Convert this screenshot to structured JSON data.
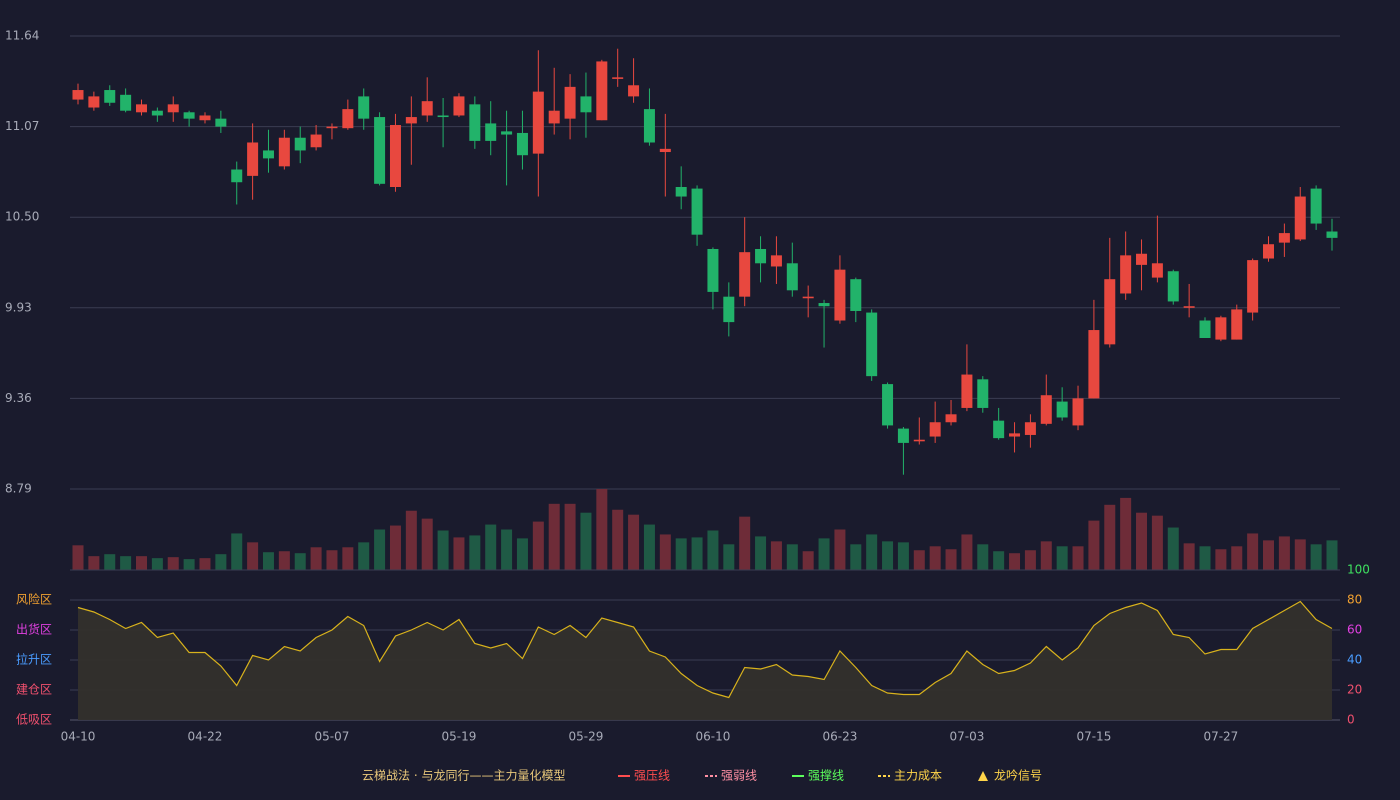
{
  "chart_data": {
    "type": "candlestick",
    "categories": [
      "04-10",
      null,
      null,
      null,
      null,
      null,
      null,
      null,
      "04-22",
      null,
      null,
      null,
      null,
      null,
      null,
      null,
      "05-07",
      null,
      null,
      null,
      null,
      null,
      null,
      null,
      "05-19",
      null,
      null,
      null,
      null,
      null,
      null,
      null,
      "05-29",
      null,
      null,
      null,
      null,
      null,
      null,
      null,
      "06-10",
      null,
      null,
      null,
      null,
      null,
      null,
      null,
      "06-23",
      null,
      null,
      null,
      null,
      null,
      null,
      null,
      "07-03",
      null,
      null,
      null,
      null,
      null,
      null,
      null,
      "07-15",
      null,
      null,
      null,
      null,
      null,
      null,
      null,
      "07-27",
      null,
      null,
      null,
      null,
      null,
      null,
      null
    ],
    "open": [
      11.24,
      11.19,
      11.3,
      11.27,
      11.16,
      11.17,
      11.16,
      11.16,
      11.11,
      11.12,
      10.8,
      10.76,
      10.92,
      10.82,
      11.0,
      10.94,
      11.06,
      11.06,
      11.26,
      11.13,
      10.69,
      11.09,
      11.14,
      11.14,
      11.14,
      11.21,
      11.09,
      11.04,
      11.03,
      10.9,
      11.09,
      11.12,
      11.26,
      11.11,
      11.37,
      11.26,
      11.18,
      10.91,
      10.69,
      10.68,
      10.3,
      10.0,
      10.0,
      10.3,
      10.19,
      10.21,
      9.99,
      9.96,
      9.85,
      10.11,
      9.9,
      9.45,
      9.17,
      9.09,
      9.12,
      9.21,
      9.3,
      9.48,
      9.22,
      9.12,
      9.13,
      9.2,
      9.34,
      9.19,
      9.36,
      9.7,
      10.02,
      10.2,
      10.12,
      10.16,
      9.93,
      9.85,
      9.73,
      9.73,
      9.9,
      10.24,
      10.34,
      10.36,
      10.68,
      10.41
    ],
    "close": [
      11.3,
      11.26,
      11.22,
      11.17,
      11.21,
      11.14,
      11.21,
      11.12,
      11.14,
      11.07,
      10.72,
      10.97,
      10.87,
      11.0,
      10.92,
      11.02,
      11.07,
      11.18,
      11.12,
      10.71,
      11.08,
      11.13,
      11.23,
      11.13,
      11.26,
      10.98,
      10.98,
      11.02,
      10.89,
      11.29,
      11.17,
      11.32,
      11.16,
      11.48,
      11.38,
      11.33,
      10.97,
      10.93,
      10.63,
      10.39,
      10.03,
      9.84,
      10.28,
      10.21,
      10.26,
      10.04,
      10.0,
      9.94,
      10.17,
      9.91,
      9.5,
      9.19,
      9.08,
      9.1,
      9.21,
      9.26,
      9.51,
      9.3,
      9.11,
      9.14,
      9.21,
      9.38,
      9.24,
      9.36,
      9.79,
      10.11,
      10.26,
      10.27,
      10.21,
      9.97,
      9.94,
      9.74,
      9.87,
      9.92,
      10.23,
      10.33,
      10.4,
      10.63,
      10.46,
      10.37
    ],
    "low": [
      11.21,
      11.17,
      11.2,
      11.16,
      11.14,
      11.1,
      11.1,
      11.07,
      11.09,
      11.03,
      10.58,
      10.61,
      10.78,
      10.8,
      10.84,
      10.92,
      10.99,
      11.05,
      11.05,
      10.7,
      10.66,
      10.83,
      11.1,
      10.94,
      11.13,
      10.93,
      10.89,
      10.7,
      10.8,
      10.63,
      11.02,
      10.99,
      11.0,
      11.11,
      11.32,
      11.22,
      10.95,
      10.63,
      10.55,
      10.32,
      9.92,
      9.75,
      9.94,
      10.09,
      10.08,
      10.0,
      9.87,
      9.68,
      9.83,
      9.84,
      9.47,
      9.17,
      8.88,
      9.07,
      9.08,
      9.19,
      9.28,
      9.27,
      9.1,
      9.02,
      9.05,
      9.19,
      9.22,
      9.16,
      9.36,
      9.68,
      9.98,
      10.04,
      10.09,
      9.95,
      9.87,
      9.74,
      9.72,
      9.73,
      9.85,
      10.22,
      10.25,
      10.35,
      10.42,
      10.29
    ],
    "high": [
      11.34,
      11.29,
      11.33,
      11.31,
      11.24,
      11.19,
      11.26,
      11.17,
      11.16,
      11.17,
      10.85,
      11.09,
      11.05,
      11.05,
      11.07,
      11.08,
      11.09,
      11.24,
      11.31,
      11.16,
      11.15,
      11.26,
      11.38,
      11.25,
      11.28,
      11.26,
      11.23,
      11.17,
      11.17,
      11.55,
      11.44,
      11.4,
      11.41,
      11.49,
      11.56,
      11.5,
      11.31,
      11.15,
      10.82,
      10.7,
      10.31,
      10.09,
      10.5,
      10.38,
      10.38,
      10.34,
      10.07,
      9.98,
      10.26,
      10.12,
      9.92,
      9.46,
      9.18,
      9.24,
      9.34,
      9.35,
      9.7,
      9.5,
      9.3,
      9.21,
      9.26,
      9.51,
      9.43,
      9.44,
      9.98,
      10.37,
      10.41,
      10.36,
      10.51,
      10.17,
      10.08,
      9.87,
      9.88,
      9.95,
      10.24,
      10.38,
      10.46,
      10.69,
      10.7,
      10.49
    ],
    "volume": [
      25,
      14,
      16,
      14,
      14,
      12,
      13,
      11,
      12,
      16,
      37,
      28,
      18,
      19,
      17,
      23,
      20,
      23,
      28,
      41,
      45,
      60,
      52,
      40,
      33,
      35,
      46,
      41,
      32,
      49,
      67,
      67,
      58,
      82,
      61,
      56,
      46,
      36,
      32,
      33,
      40,
      26,
      54,
      34,
      29,
      26,
      19,
      32,
      41,
      26,
      36,
      29,
      28,
      20,
      24,
      21,
      36,
      26,
      19,
      17,
      20,
      29,
      24,
      24,
      50,
      66,
      73,
      58,
      55,
      43,
      27,
      24,
      21,
      24,
      37,
      30,
      34,
      31,
      26,
      30
    ],
    "ylim": [
      8.79,
      11.64
    ],
    "yticks": [
      11.64,
      11.07,
      {
        "value": 10.5,
        "label": "10.50"
      },
      9.93,
      9.36,
      8.79
    ],
    "grid": true,
    "up_color": "#e8483f",
    "down_color": "#22b36a",
    "up_volume_color": "#6e2c38",
    "down_volume_color": "#1f5a45",
    "indicator": {
      "values": [
        75,
        72,
        67,
        61,
        65,
        55,
        58,
        45,
        45,
        36,
        23,
        43,
        40,
        49,
        46,
        55,
        60,
        69,
        63,
        39,
        56,
        60,
        65,
        60,
        67,
        51,
        48,
        51,
        41,
        62,
        57,
        63,
        55,
        68,
        65,
        62,
        46,
        42,
        31,
        23,
        18,
        15,
        35,
        34,
        37,
        30,
        29,
        27,
        46,
        35,
        23,
        18,
        17,
        17,
        25,
        31,
        46,
        37,
        31,
        33,
        38,
        49,
        40,
        48,
        63,
        71,
        75,
        78,
        73,
        57,
        55,
        44,
        47,
        47,
        61,
        67,
        73,
        79,
        67,
        61
      ],
      "color": "#d8b21c",
      "ylim": [
        0,
        100
      ],
      "yticks": [
        0,
        20,
        40,
        60,
        80,
        100
      ],
      "tick_colors": [
        "#f0506e",
        "#f0506e",
        "#4a9cff",
        "#e040e0",
        "#f0a030",
        "#3ee060"
      ],
      "zones": [
        {
          "label": "风险区",
          "value": 80,
          "color": "#f0a030"
        },
        {
          "label": "出货区",
          "value": 60,
          "color": "#e040e0"
        },
        {
          "label": "拉升区",
          "value": 40,
          "color": "#4a9cff"
        },
        {
          "label": "建仓区",
          "value": 20,
          "color": "#f0506e"
        },
        {
          "label": "低吸区",
          "value": 0,
          "color": "#f0506e"
        }
      ]
    },
    "legend": {
      "title": "云梯战法 · 与龙同行——主力量化模型",
      "title_color": "#e8c77a",
      "items": [
        {
          "name": "强压线",
          "color": "#ff4d4f",
          "style": "solid"
        },
        {
          "name": "强弱线",
          "color": "#ff8fa3",
          "style": "dashed"
        },
        {
          "name": "强撑线",
          "color": "#5cff5c",
          "style": "solid"
        },
        {
          "name": "主力成本",
          "color": "#ffd54a",
          "style": "dashed"
        },
        {
          "name": "龙吟信号",
          "color": "#ffd54a",
          "style": "triangle"
        }
      ]
    }
  }
}
